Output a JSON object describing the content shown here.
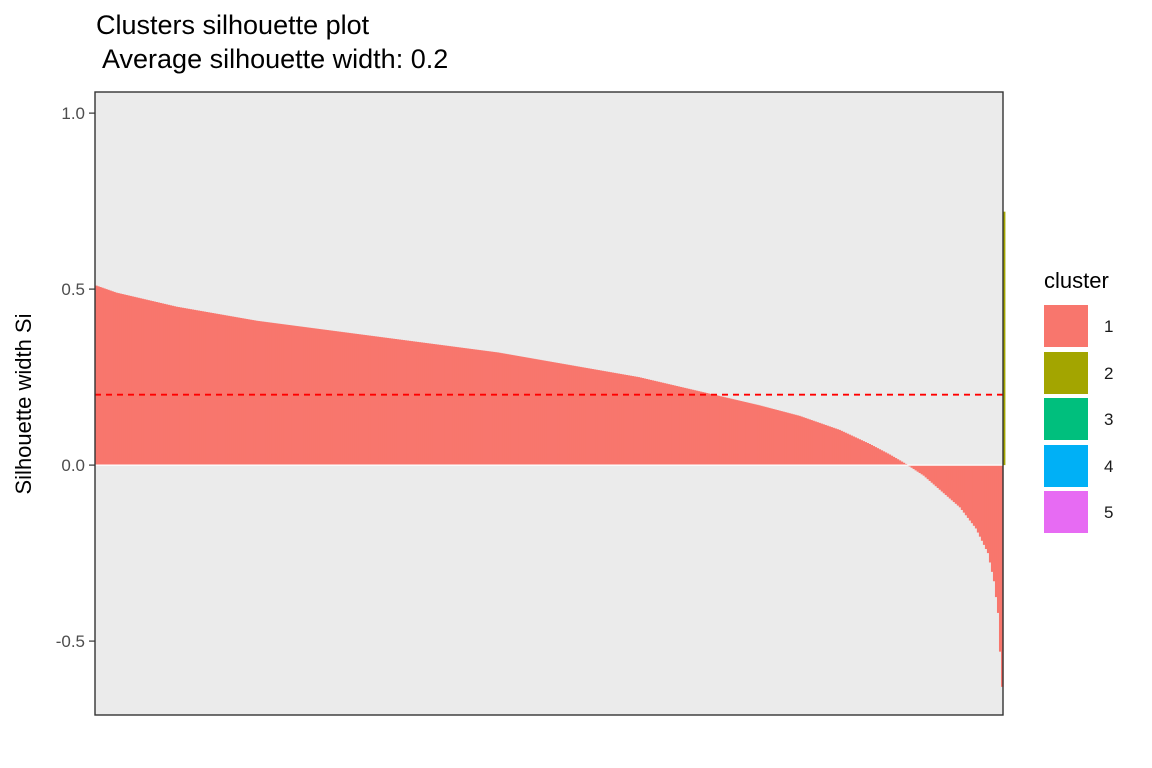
{
  "chart_data": {
    "type": "bar",
    "title": "Clusters silhouette plot",
    "subtitle": " Average silhouette width: 0.2",
    "xlabel": "",
    "ylabel": "Silhouette width Si",
    "ylim": [
      -0.71,
      1.06
    ],
    "yticks": [
      -0.5,
      0.0,
      0.5,
      1.0
    ],
    "ytick_labels": [
      "-0.5",
      "0.0",
      "0.5",
      "1.0"
    ],
    "average_line": 0.2,
    "n_observations": 452,
    "legend_title": "cluster",
    "legend": [
      {
        "label": "1",
        "color": "#F8766D"
      },
      {
        "label": "2",
        "color": "#A3A500"
      },
      {
        "label": "3",
        "color": "#00BF7D"
      },
      {
        "label": "4",
        "color": "#00B0F6"
      },
      {
        "label": "5",
        "color": "#E76BF3"
      }
    ],
    "series": [
      {
        "name": "1",
        "color": "#F8766D",
        "profile": [
          [
            0,
            0.51
          ],
          [
            10,
            0.49
          ],
          [
            40,
            0.45
          ],
          [
            80,
            0.41
          ],
          [
            120,
            0.38
          ],
          [
            160,
            0.35
          ],
          [
            200,
            0.32
          ],
          [
            240,
            0.28
          ],
          [
            270,
            0.25
          ],
          [
            300,
            0.21
          ],
          [
            330,
            0.17
          ],
          [
            350,
            0.14
          ],
          [
            370,
            0.1
          ],
          [
            385,
            0.06
          ],
          [
            395,
            0.03
          ],
          [
            404,
            0.0
          ],
          [
            412,
            -0.03
          ],
          [
            420,
            -0.07
          ],
          [
            430,
            -0.12
          ],
          [
            438,
            -0.18
          ],
          [
            444,
            -0.25
          ],
          [
            447,
            -0.33
          ],
          [
            449,
            -0.42
          ],
          [
            450,
            -0.53
          ],
          [
            451,
            -0.63
          ]
        ]
      },
      {
        "name": "2",
        "color": "#A3A500",
        "values": [
          0.72
        ]
      }
    ],
    "axis": {
      "panel_bg": "#EBEBEB",
      "zero_line_color": "#FFFFFF",
      "avg_line_color": "#FF0000"
    }
  }
}
